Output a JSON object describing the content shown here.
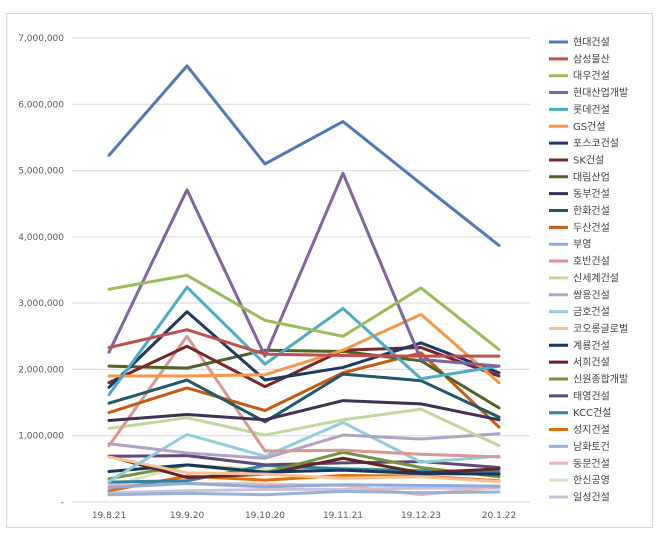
{
  "chart_data": {
    "type": "line",
    "categories": [
      "19.8.21",
      "19.9.20",
      "19.10.20",
      "19.11.21",
      "19.12.23",
      "20.1.22"
    ],
    "y_ticks": [
      "-",
      "1,000,000",
      "2,000,000",
      "3,000,000",
      "4,000,000",
      "5,000,000",
      "6,000,000",
      "7,000,000"
    ],
    "ylim": [
      0,
      7000000
    ],
    "grid": true,
    "legend_position": "right",
    "series": [
      {
        "name": "현대건설",
        "color": "#4e79b8",
        "values": [
          5230000,
          6580000,
          5100000,
          5740000,
          4800000,
          3870000
        ]
      },
      {
        "name": "삼성물산",
        "color": "#c0504d",
        "values": [
          2330000,
          2600000,
          2230000,
          2210000,
          2200000,
          2200000
        ]
      },
      {
        "name": "대우건설",
        "color": "#9bbb59",
        "values": [
          3210000,
          3420000,
          2740000,
          2500000,
          3230000,
          2300000
        ]
      },
      {
        "name": "현대산업개발",
        "color": "#8064a2",
        "values": [
          2260000,
          4710000,
          2200000,
          4960000,
          2150000,
          2050000
        ]
      },
      {
        "name": "롯데건설",
        "color": "#4bacc6",
        "values": [
          1620000,
          3240000,
          2080000,
          2920000,
          1860000,
          2050000
        ]
      },
      {
        "name": "GS건설",
        "color": "#f79646",
        "values": [
          1900000,
          1900000,
          1920000,
          2290000,
          2830000,
          1800000
        ]
      },
      {
        "name": "포스코건설",
        "color": "#1f3864",
        "values": [
          1730000,
          2870000,
          1840000,
          2030000,
          2400000,
          1950000
        ]
      },
      {
        "name": "SK건설",
        "color": "#7b2626",
        "values": [
          1800000,
          2350000,
          1740000,
          2290000,
          2330000,
          1900000
        ]
      },
      {
        "name": "대림산업",
        "color": "#4f6228",
        "values": [
          2050000,
          2020000,
          2290000,
          2270000,
          2130000,
          1420000
        ]
      },
      {
        "name": "동부건설",
        "color": "#3f3151",
        "values": [
          1230000,
          1320000,
          1240000,
          1530000,
          1480000,
          1240000
        ]
      },
      {
        "name": "한화건설",
        "color": "#215968",
        "values": [
          1490000,
          1840000,
          1210000,
          1930000,
          1830000,
          1280000
        ]
      },
      {
        "name": "두산건설",
        "color": "#c55a11",
        "values": [
          1350000,
          1720000,
          1380000,
          1950000,
          2250000,
          1130000
        ]
      },
      {
        "name": "부영",
        "color": "#8faadc",
        "values": [
          220000,
          280000,
          230000,
          260000,
          250000,
          240000
        ]
      },
      {
        "name": "호반건설",
        "color": "#d99694",
        "values": [
          850000,
          2500000,
          770000,
          780000,
          720000,
          680000
        ]
      },
      {
        "name": "신세계건설",
        "color": "#c3d69b",
        "values": [
          1110000,
          1270000,
          1010000,
          1240000,
          1400000,
          850000
        ]
      },
      {
        "name": "쌍용건설",
        "color": "#b3a2c7",
        "values": [
          880000,
          740000,
          660000,
          1010000,
          950000,
          1030000
        ]
      },
      {
        "name": "금호건설",
        "color": "#92cddc",
        "values": [
          310000,
          1020000,
          690000,
          1200000,
          600000,
          690000
        ]
      },
      {
        "name": "코오롱글로벌",
        "color": "#fac090",
        "values": [
          680000,
          440000,
          420000,
          360000,
          380000,
          310000
        ]
      },
      {
        "name": "계룡건설",
        "color": "#17375e",
        "values": [
          460000,
          560000,
          450000,
          480000,
          430000,
          420000
        ]
      },
      {
        "name": "서희건설",
        "color": "#632523",
        "values": [
          690000,
          370000,
          420000,
          660000,
          440000,
          500000
        ]
      },
      {
        "name": "신원종합개발",
        "color": "#76923c",
        "values": [
          350000,
          560000,
          440000,
          750000,
          520000,
          380000
        ]
      },
      {
        "name": "태영건설",
        "color": "#5f497a",
        "values": [
          690000,
          700000,
          560000,
          590000,
          610000,
          520000
        ]
      },
      {
        "name": "KCC건설",
        "color": "#31859c",
        "values": [
          300000,
          320000,
          550000,
          500000,
          470000,
          450000
        ]
      },
      {
        "name": "성지건설",
        "color": "#e46c0a",
        "values": [
          170000,
          390000,
          330000,
          400000,
          390000,
          320000
        ]
      },
      {
        "name": "남화토건",
        "color": "#95b3d7",
        "values": [
          110000,
          130000,
          110000,
          160000,
          140000,
          150000
        ]
      },
      {
        "name": "동문건설",
        "color": "#e6b9b8",
        "values": [
          250000,
          280000,
          270000,
          250000,
          110000,
          230000
        ]
      },
      {
        "name": "한신공영",
        "color": "#d7e4bd",
        "values": [
          230000,
          560000,
          490000,
          510000,
          480000,
          470000
        ]
      },
      {
        "name": "일성건설",
        "color": "#ccc1da",
        "values": [
          140000,
          170000,
          190000,
          190000,
          210000,
          210000
        ]
      }
    ]
  }
}
